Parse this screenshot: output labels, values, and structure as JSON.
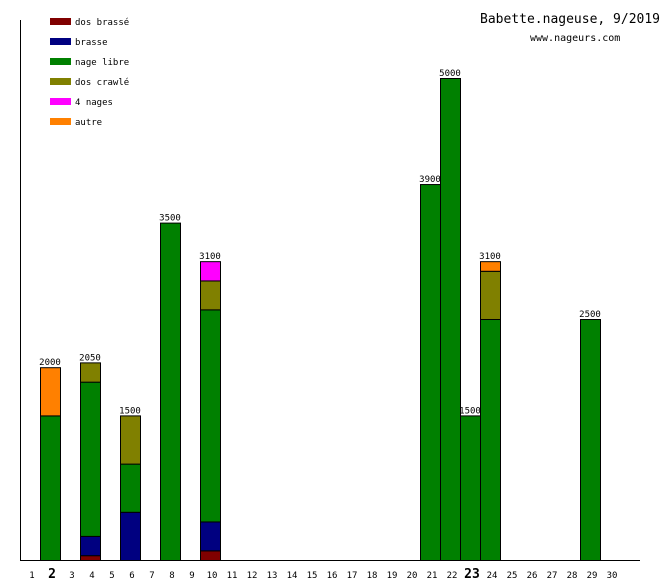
{
  "chart_data": {
    "type": "bar",
    "stacked": true,
    "title": "Babette.nageuse, 9/2019",
    "subtitle": "www.nageurs.com",
    "xlabel": "",
    "ylabel": "",
    "ylim": [
      0,
      5000
    ],
    "categories": [
      "1",
      "2",
      "3",
      "4",
      "5",
      "6",
      "7",
      "8",
      "9",
      "10",
      "11",
      "12",
      "13",
      "14",
      "15",
      "16",
      "17",
      "18",
      "19",
      "20",
      "21",
      "22",
      "23",
      "24",
      "25",
      "26",
      "27",
      "28",
      "29",
      "30"
    ],
    "highlighted": [
      "2",
      "23"
    ],
    "series": [
      {
        "name": "dos brassé",
        "color": "#800000",
        "values": [
          0,
          0,
          0,
          50,
          0,
          0,
          0,
          0,
          0,
          100,
          0,
          0,
          0,
          0,
          0,
          0,
          0,
          0,
          0,
          0,
          0,
          0,
          0,
          0,
          0,
          0,
          0,
          0,
          0,
          0
        ]
      },
      {
        "name": "brasse",
        "color": "#000080",
        "values": [
          0,
          0,
          0,
          200,
          0,
          500,
          0,
          0,
          0,
          300,
          0,
          0,
          0,
          0,
          0,
          0,
          0,
          0,
          0,
          0,
          0,
          0,
          0,
          0,
          0,
          0,
          0,
          0,
          0,
          0
        ]
      },
      {
        "name": "nage libre",
        "color": "#008000",
        "values": [
          0,
          1500,
          0,
          1600,
          0,
          500,
          0,
          3500,
          0,
          2200,
          0,
          0,
          0,
          0,
          0,
          0,
          0,
          0,
          0,
          0,
          3900,
          5000,
          1500,
          2500,
          0,
          0,
          0,
          0,
          2500,
          0
        ]
      },
      {
        "name": "dos crawlé",
        "color": "#808000",
        "values": [
          0,
          0,
          0,
          200,
          0,
          500,
          0,
          0,
          0,
          300,
          0,
          0,
          0,
          0,
          0,
          0,
          0,
          0,
          0,
          0,
          0,
          0,
          0,
          500,
          0,
          0,
          0,
          0,
          0,
          0
        ]
      },
      {
        "name": "4 nages",
        "color": "#ff00ff",
        "values": [
          0,
          0,
          0,
          0,
          0,
          0,
          0,
          0,
          0,
          200,
          0,
          0,
          0,
          0,
          0,
          0,
          0,
          0,
          0,
          0,
          0,
          0,
          0,
          0,
          0,
          0,
          0,
          0,
          0,
          0
        ]
      },
      {
        "name": "autre",
        "color": "#ff8000",
        "values": [
          0,
          500,
          0,
          0,
          0,
          0,
          0,
          0,
          0,
          0,
          0,
          0,
          0,
          0,
          0,
          0,
          0,
          0,
          0,
          0,
          0,
          0,
          0,
          100,
          0,
          0,
          0,
          0,
          0,
          0
        ]
      }
    ],
    "totals": [
      "",
      "2000",
      "",
      "2050",
      "",
      "1500",
      "",
      "3500",
      "",
      "3100",
      "",
      "",
      "",
      "",
      "",
      "",
      "",
      "",
      "",
      "",
      "3900",
      "5000",
      "1500",
      "3100",
      "",
      "",
      "",
      "",
      "2500",
      ""
    ],
    "legend_position": "top-left",
    "grid": false
  }
}
